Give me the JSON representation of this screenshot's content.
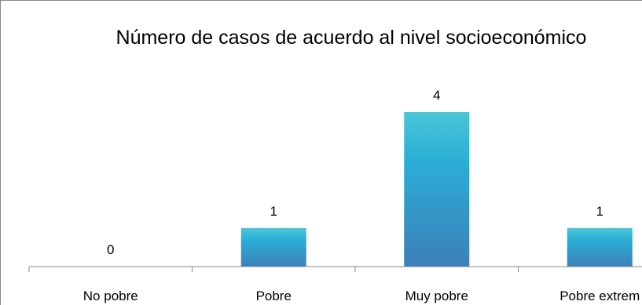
{
  "chart_data": {
    "type": "bar",
    "title": "Número de casos de acuerdo al nivel socioeconómico",
    "categories": [
      "No pobre",
      "Pobre",
      "Muy pobre",
      "Pobre extrem"
    ],
    "values": [
      0,
      1,
      4,
      1
    ],
    "ylim": [
      0,
      5
    ],
    "grid": false,
    "legend": "none",
    "colors": {
      "bar_top": "#4bc6d8",
      "bar_mid": "#2aaed6",
      "bar_bottom": "#3d7fb8",
      "axis": "#878787",
      "border": "#878787"
    }
  }
}
